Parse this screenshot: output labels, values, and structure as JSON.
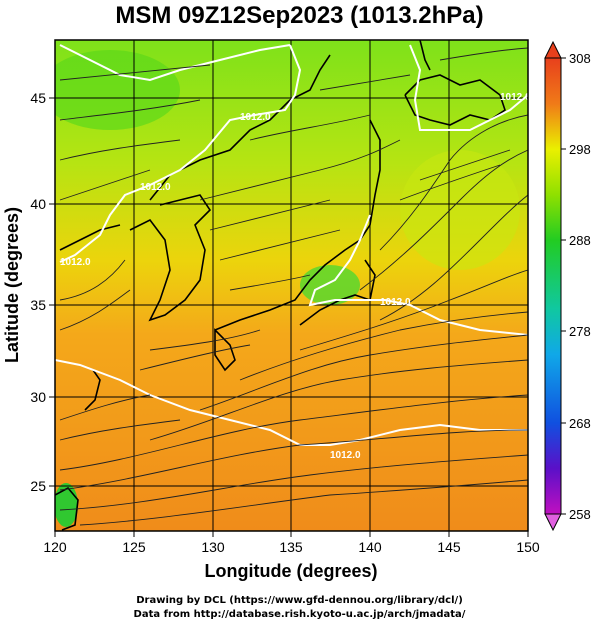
{
  "title": "MSM 09Z12Sep2023 (1013.2hPa)",
  "xlabel": "Longitude (degrees)",
  "ylabel": "Latitude  (degrees)",
  "x_ticks": [
    "120",
    "125",
    "130",
    "135",
    "140",
    "145",
    "150"
  ],
  "y_ticks": [
    "25",
    "30",
    "35",
    "40",
    "45"
  ],
  "colorbar": {
    "ticks": [
      "308",
      "298",
      "288",
      "278",
      "268",
      "258"
    ],
    "colors": [
      "#e8401c",
      "#f07a18",
      "#f5b020",
      "#eaf000",
      "#8fe000",
      "#22cc22",
      "#10c8a0",
      "#10a8e8",
      "#1050e0",
      "#5a10c8",
      "#c010c0",
      "#e060e0"
    ]
  },
  "contour_labels": [
    "1012.0",
    "1012.0",
    "1012.0",
    "1012.0",
    "1012.0",
    "1012.0"
  ],
  "credits": [
    "Drawing by DCL (https://www.gfd-dennou.org/library/dcl/)",
    "Data from http://database.rish.kyoto-u.ac.jp/arch/jmadata/"
  ],
  "chart_data": {
    "type": "heatmap",
    "title": "MSM 09Z12Sep2023 (1013.2hPa)",
    "xlabel": "Longitude (degrees)",
    "ylabel": "Latitude  (degrees)",
    "xlim": [
      120,
      150
    ],
    "ylim": [
      22.4,
      47.6
    ],
    "colorbar_range": [
      258,
      308
    ],
    "colorbar_ticks": [
      258,
      268,
      278,
      288,
      298,
      308
    ],
    "contour_level": 1012.0,
    "grid": true
  }
}
